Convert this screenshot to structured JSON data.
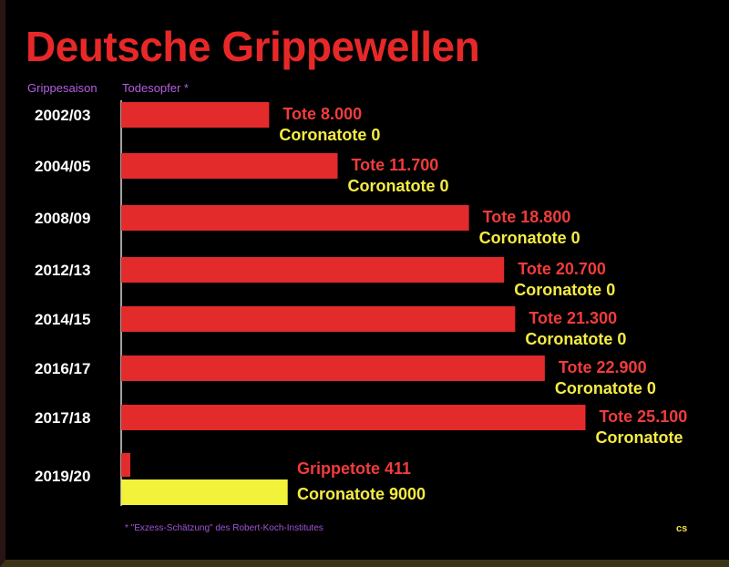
{
  "chart_data": {
    "type": "bar",
    "title": "Deutsche Grippewellen",
    "xlabel": "Todesopfer *",
    "ylabel": "Grippesaison",
    "footnote": "* \"Exzess-Schätzung\" des Robert-Koch-Institutes",
    "mark": "cs",
    "colors": {
      "flu": "#e32b2b",
      "covid": "#f2f23a",
      "flu_label": "#f03c3c",
      "covid_label": "#f5ec43",
      "category": "#ffffff"
    },
    "categories": [
      "2002/03",
      "2004/05",
      "2008/09",
      "2012/13",
      "2014/15",
      "2016/17",
      "2017/18",
      "2019/20"
    ],
    "series": [
      {
        "name": "Tote",
        "values": [
          8000,
          11700,
          18800,
          20700,
          21300,
          22900,
          25100,
          411
        ],
        "labels": [
          "Tote 8.000",
          "Tote 11.700",
          "Tote 18.800",
          "Tote 20.700",
          "Tote 21.300",
          "Tote 22.900",
          "Tote 25.100",
          "Grippetote 411"
        ]
      },
      {
        "name": "Coronatote",
        "values": [
          0,
          0,
          0,
          0,
          0,
          0,
          null,
          9000
        ],
        "labels": [
          "Coronatote 0",
          "Coronatote 0",
          "Coronatote 0",
          "Coronatote 0",
          "Coronatote 0",
          "Coronatote 0",
          "Coronatote",
          "Coronatote 9000"
        ]
      }
    ]
  }
}
